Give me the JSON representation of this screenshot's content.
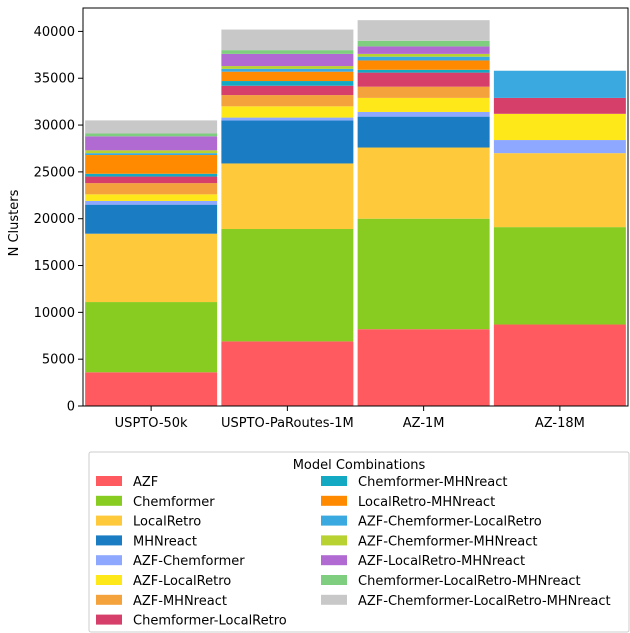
{
  "chart_data": {
    "type": "bar",
    "stacked": true,
    "ylabel": "N Clusters",
    "xlabel": "",
    "ylim": [
      0,
      42500
    ],
    "yticks": [
      0,
      5000,
      10000,
      15000,
      20000,
      25000,
      30000,
      35000,
      40000
    ],
    "ytick_labels": [
      "0",
      "5000",
      "10000",
      "15000",
      "20000",
      "25000",
      "30000",
      "35000",
      "40000"
    ],
    "categories": [
      "USPTO-50k",
      "USPTO-PaRoutes-1M",
      "AZ-1M",
      "AZ-18M"
    ],
    "legend": {
      "title": "Model Combinations",
      "placement": "below"
    },
    "series": [
      {
        "name": "AZF",
        "color": "#ff5a5f",
        "values": [
          3600,
          6900,
          8200,
          8700
        ]
      },
      {
        "name": "Chemformer",
        "color": "#88cc22",
        "values": [
          7500,
          12000,
          11800,
          10400
        ]
      },
      {
        "name": "LocalRetro",
        "color": "#ffc93c",
        "values": [
          7300,
          7000,
          7600,
          7900
        ]
      },
      {
        "name": "MHNreact",
        "color": "#1a7dc4",
        "values": [
          3100,
          4600,
          3300,
          0
        ]
      },
      {
        "name": "AZF-Chemformer",
        "color": "#8fa8ff",
        "values": [
          400,
          300,
          500,
          1400
        ]
      },
      {
        "name": "AZF-LocalRetro",
        "color": "#ffe81a",
        "values": [
          700,
          1200,
          1500,
          2800
        ]
      },
      {
        "name": "AZF-MHNreact",
        "color": "#f4a23c",
        "values": [
          1200,
          1200,
          1200,
          0
        ]
      },
      {
        "name": "Chemformer-LocalRetro",
        "color": "#d63f6a",
        "values": [
          700,
          1000,
          1500,
          1700
        ]
      },
      {
        "name": "Chemformer-MHNreact",
        "color": "#14a9c2",
        "values": [
          300,
          500,
          300,
          0
        ]
      },
      {
        "name": "LocalRetro-MHNreact",
        "color": "#ff8a00",
        "values": [
          2000,
          1000,
          1000,
          0
        ]
      },
      {
        "name": "AZF-Chemformer-LocalRetro",
        "color": "#3aa9e0",
        "values": [
          200,
          300,
          400,
          2900
        ]
      },
      {
        "name": "AZF-Chemformer-MHNreact",
        "color": "#b8d232",
        "values": [
          300,
          300,
          300,
          0
        ]
      },
      {
        "name": "AZF-LocalRetro-MHNreact",
        "color": "#b06ad2",
        "values": [
          1500,
          1300,
          800,
          0
        ]
      },
      {
        "name": "Chemformer-LocalRetro-MHNreact",
        "color": "#7fce7f",
        "values": [
          300,
          400,
          600,
          0
        ]
      },
      {
        "name": "AZF-Chemformer-LocalRetro-MHNreact",
        "color": "#c8c8c8",
        "values": [
          1400,
          2200,
          2200,
          0
        ]
      }
    ]
  }
}
